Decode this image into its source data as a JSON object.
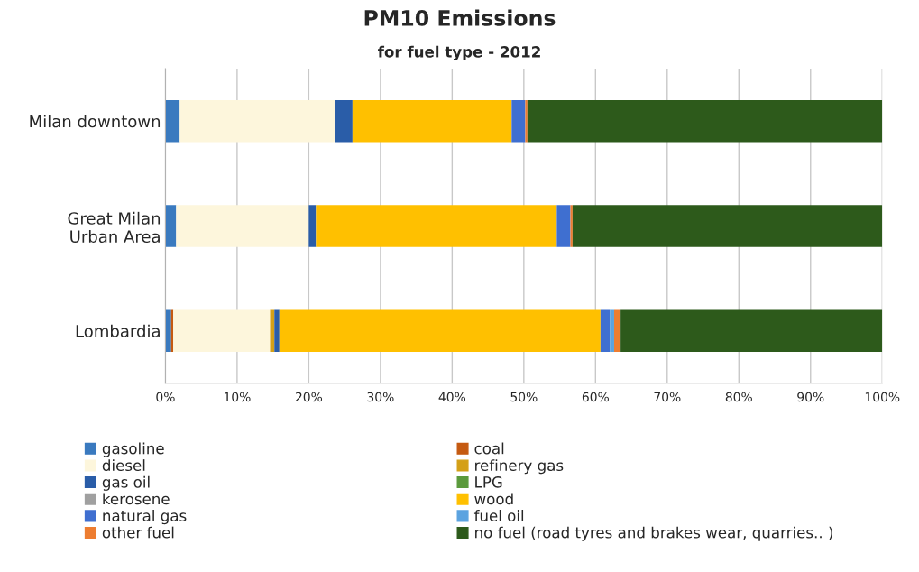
{
  "chart_data": {
    "type": "bar",
    "title": "PM10 Emissions",
    "subtitle": "for fuel type - 2012",
    "orientation": "horizontal",
    "stacked": true,
    "categories": [
      "Milan downtown",
      "Great Milan\nUrban Area",
      "Lombardia"
    ],
    "series": [
      {
        "name": "gasoline",
        "color": "#3a7abf",
        "values": [
          2.0,
          1.5,
          0.8
        ]
      },
      {
        "name": "coal",
        "color": "#c55a11",
        "values": [
          0,
          0,
          0.3
        ]
      },
      {
        "name": "diesel",
        "color": "#fdf6dc",
        "values": [
          21.6,
          18.5,
          13.5
        ]
      },
      {
        "name": "refinery gas",
        "color": "#d4a017",
        "values": [
          0,
          0,
          0.6
        ]
      },
      {
        "name": "gas oil",
        "color": "#2a5da8",
        "values": [
          2.5,
          1.0,
          0.7
        ]
      },
      {
        "name": "LPG",
        "color": "#5b9a3c",
        "values": [
          0,
          0,
          0
        ]
      },
      {
        "name": "kerosene",
        "color": "#a0a0a0",
        "values": [
          0,
          0,
          0
        ]
      },
      {
        "name": "wood",
        "color": "#ffc000",
        "values": [
          22.2,
          33.6,
          44.8
        ]
      },
      {
        "name": "natural gas",
        "color": "#3f6fd0",
        "values": [
          1.9,
          1.9,
          1.3
        ]
      },
      {
        "name": "fuel oil",
        "color": "#5ba3e0",
        "values": [
          0,
          0,
          0.6
        ]
      },
      {
        "name": "other fuel",
        "color": "#ed7d31",
        "values": [
          0.3,
          0.3,
          0.9
        ]
      },
      {
        "name": "no fuel (road tyres and brakes wear, quarries.. )",
        "color": "#2d5a1b",
        "values": [
          49.5,
          43.2,
          36.5
        ]
      }
    ],
    "xlim": [
      0,
      100
    ],
    "xticks": [
      {
        "value": 0,
        "label": "0%"
      },
      {
        "value": 10,
        "label": "10%"
      },
      {
        "value": 20,
        "label": "20%"
      },
      {
        "value": 30,
        "label": "30%"
      },
      {
        "value": 40,
        "label": "40%"
      },
      {
        "value": 50,
        "label": "50%"
      },
      {
        "value": 60,
        "label": "60%"
      },
      {
        "value": 70,
        "label": "70%"
      },
      {
        "value": 80,
        "label": "80%"
      },
      {
        "value": 90,
        "label": "90%"
      },
      {
        "value": 100,
        "label": "100%"
      }
    ],
    "grid": "x",
    "legend": "bottom"
  }
}
